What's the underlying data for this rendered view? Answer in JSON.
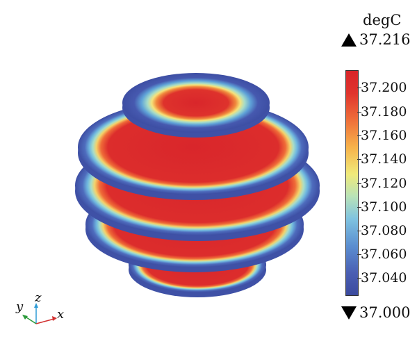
{
  "legend": {
    "unit": "degC",
    "max_value": "37.216",
    "min_value": "37.000",
    "ticks": [
      "37.200",
      "37.180",
      "37.160",
      "37.140",
      "37.120",
      "37.100",
      "37.080",
      "37.060",
      "37.040"
    ]
  },
  "triad": {
    "x_label": "x",
    "y_label": "y",
    "z_label": "z"
  },
  "colors": {
    "cold": "#3b4a9e",
    "hot": "#d8252a"
  }
}
